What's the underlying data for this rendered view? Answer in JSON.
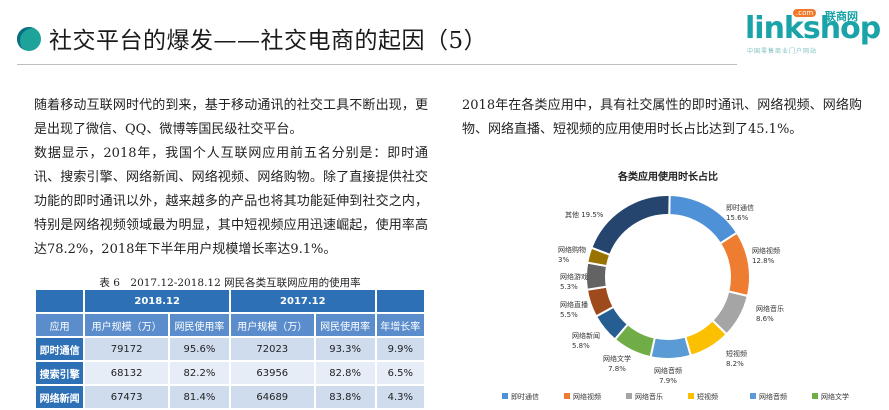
{
  "header": {
    "title": "社交平台的爆发——社交电商的起因（5）",
    "logo": {
      "text": "linkshop",
      "badge": ".com",
      "cn": "联商网",
      "tagline": "中国零售商业门户网站"
    }
  },
  "left_text": {
    "p1": "随着移动互联网时代的到来，基于移动通讯的社交工具不断出现，更是出现了微信、QQ、微博等国民级社交平台。",
    "p2": "数据显示，2018年，我国个人互联网应用前五名分别是：即时通讯、搜索引擎、网络新闻、网络视频、网络购物。除了直接提供社交功能的即时通讯以外，越来越多的产品也将其功能延伸到社交之内，特别是网络视频领域最为明显，其中短视频应用迅速崛起，使用率高达78.2%，2018年下半年用户规模增长率达9.1%。"
  },
  "right_text": {
    "p1": "2018年在各类应用中，具有社交属性的即时通讯、网络视频、网络购物、网络直播、短视频的应用使用时长占比达到了45.1%。"
  },
  "table": {
    "caption": "表 6　2017.12-2018.12 网民各类互联网应用的使用率",
    "group_headers": [
      "2018.12",
      "2017.12"
    ],
    "columns": [
      "应用",
      "用户规模（万）",
      "网民使用率",
      "用户规模（万）",
      "网民使用率",
      "年增长率"
    ],
    "rows": [
      [
        "即时通信",
        "79172",
        "95.6%",
        "72023",
        "93.3%",
        "9.9%"
      ],
      [
        "搜索引擎",
        "68132",
        "82.2%",
        "63956",
        "82.8%",
        "6.5%"
      ],
      [
        "网络新闻",
        "67473",
        "81.4%",
        "64689",
        "83.8%",
        "4.3%"
      ]
    ]
  },
  "chart_data": {
    "type": "pie",
    "title": "各类应用使用时长占比",
    "donut": true,
    "slices": [
      {
        "label": "即时通信",
        "value": 15.6,
        "color": "#4e91d6"
      },
      {
        "label": "网络视频",
        "value": 12.8,
        "color": "#ee7d31"
      },
      {
        "label": "网络音乐",
        "value": 8.6,
        "color": "#a5a5a5"
      },
      {
        "label": "短视频",
        "value": 8.2,
        "color": "#fbc002"
      },
      {
        "label": "网络音频",
        "value": 7.9,
        "color": "#5a9bd5"
      },
      {
        "label": "网络文学",
        "value": 7.8,
        "color": "#70ad46"
      },
      {
        "label": "网络新闻",
        "value": 5.8,
        "color": "#265e91"
      },
      {
        "label": "网络直播",
        "value": 5.5,
        "color": "#9e4a1c"
      },
      {
        "label": "网络游戏",
        "value": 5.3,
        "color": "#636363"
      },
      {
        "label": "网络购物",
        "value": 3.0,
        "color": "#997200"
      },
      {
        "label": "其他",
        "value": 19.5,
        "color": "#25446e"
      }
    ],
    "legend_placement": "bottom"
  }
}
